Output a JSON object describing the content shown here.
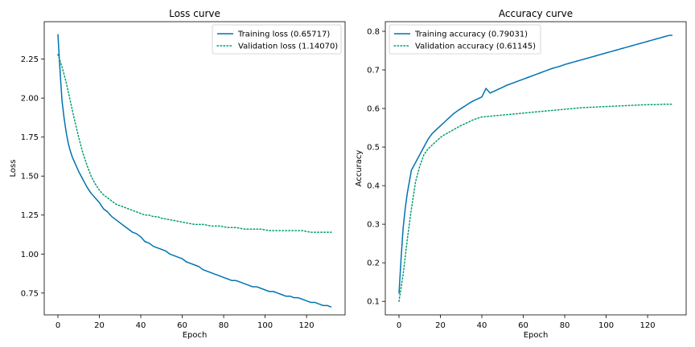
{
  "chart_data": [
    {
      "type": "line",
      "title": "Loss curve",
      "xlabel": "Epoch",
      "ylabel": "Loss",
      "xlim": [
        -6.6,
        138.6
      ],
      "ylim": [
        0.61,
        2.49
      ],
      "xticks": [
        0,
        20,
        40,
        60,
        80,
        100,
        120
      ],
      "yticks": [
        0.75,
        1.0,
        1.25,
        1.5,
        1.75,
        2.0,
        2.25
      ],
      "ytick_labels": [
        "0.75",
        "1.00",
        "1.25",
        "1.50",
        "1.75",
        "2.00",
        "2.25"
      ],
      "legend_position": "upper-right",
      "grid": false,
      "series": [
        {
          "name": "Training loss (0.65717)",
          "color": "#0072B2",
          "style": "solid",
          "x": [
            0,
            1,
            2,
            3,
            4,
            5,
            6,
            7,
            8,
            10,
            12,
            14,
            16,
            18,
            20,
            22,
            24,
            26,
            28,
            30,
            32,
            34,
            36,
            38,
            40,
            42,
            44,
            46,
            48,
            50,
            52,
            54,
            56,
            58,
            60,
            62,
            64,
            66,
            68,
            70,
            72,
            74,
            76,
            78,
            80,
            82,
            84,
            86,
            88,
            90,
            92,
            94,
            96,
            98,
            100,
            102,
            104,
            106,
            108,
            110,
            112,
            114,
            116,
            118,
            120,
            122,
            124,
            126,
            128,
            130,
            132
          ],
          "y": [
            2.41,
            2.18,
            1.98,
            1.87,
            1.78,
            1.71,
            1.66,
            1.62,
            1.59,
            1.53,
            1.48,
            1.43,
            1.39,
            1.36,
            1.33,
            1.29,
            1.27,
            1.24,
            1.22,
            1.2,
            1.18,
            1.16,
            1.14,
            1.13,
            1.11,
            1.08,
            1.07,
            1.05,
            1.04,
            1.03,
            1.02,
            1.0,
            0.99,
            0.98,
            0.97,
            0.95,
            0.94,
            0.93,
            0.92,
            0.9,
            0.89,
            0.88,
            0.87,
            0.86,
            0.85,
            0.84,
            0.83,
            0.83,
            0.82,
            0.81,
            0.8,
            0.79,
            0.79,
            0.78,
            0.77,
            0.76,
            0.76,
            0.75,
            0.74,
            0.73,
            0.73,
            0.72,
            0.72,
            0.71,
            0.7,
            0.69,
            0.69,
            0.68,
            0.67,
            0.67,
            0.66
          ]
        },
        {
          "name": "Validation loss (1.14070)",
          "color": "#009E73",
          "style": "dotted",
          "x": [
            0,
            2,
            4,
            6,
            8,
            10,
            12,
            14,
            16,
            18,
            20,
            22,
            24,
            26,
            28,
            30,
            32,
            34,
            36,
            38,
            40,
            42,
            44,
            46,
            48,
            50,
            54,
            58,
            62,
            66,
            70,
            74,
            78,
            82,
            86,
            90,
            94,
            98,
            102,
            106,
            110,
            114,
            118,
            122,
            126,
            130,
            132
          ],
          "y": [
            2.28,
            2.2,
            2.1,
            1.98,
            1.86,
            1.75,
            1.65,
            1.57,
            1.5,
            1.45,
            1.41,
            1.38,
            1.36,
            1.34,
            1.32,
            1.31,
            1.3,
            1.29,
            1.28,
            1.27,
            1.26,
            1.25,
            1.25,
            1.24,
            1.24,
            1.23,
            1.22,
            1.21,
            1.2,
            1.19,
            1.19,
            1.18,
            1.18,
            1.17,
            1.17,
            1.16,
            1.16,
            1.16,
            1.15,
            1.15,
            1.15,
            1.15,
            1.15,
            1.14,
            1.14,
            1.14,
            1.14
          ]
        }
      ]
    },
    {
      "type": "line",
      "title": "Accuracy curve",
      "xlabel": "Epoch",
      "ylabel": "Accuracy",
      "xlim": [
        -6.6,
        138.6
      ],
      "ylim": [
        0.065,
        0.825
      ],
      "xticks": [
        0,
        20,
        40,
        60,
        80,
        100,
        120
      ],
      "yticks": [
        0.1,
        0.2,
        0.3,
        0.4,
        0.5,
        0.6,
        0.7,
        0.8
      ],
      "ytick_labels": [
        "0.1",
        "0.2",
        "0.3",
        "0.4",
        "0.5",
        "0.6",
        "0.7",
        "0.8"
      ],
      "legend_position": "upper-left",
      "grid": false,
      "series": [
        {
          "name": "Training accuracy (0.79031)",
          "color": "#0072B2",
          "style": "solid",
          "x": [
            0,
            1,
            2,
            3,
            4,
            5,
            6,
            7,
            8,
            9,
            10,
            12,
            14,
            16,
            18,
            20,
            22,
            24,
            26,
            28,
            30,
            32,
            34,
            36,
            38,
            40,
            42,
            44,
            46,
            48,
            50,
            52,
            54,
            56,
            58,
            60,
            62,
            64,
            66,
            68,
            70,
            72,
            74,
            76,
            78,
            80,
            82,
            84,
            86,
            88,
            90,
            92,
            94,
            96,
            98,
            100,
            102,
            104,
            106,
            108,
            110,
            112,
            114,
            116,
            118,
            120,
            122,
            124,
            126,
            128,
            130,
            132
          ],
          "y": [
            0.12,
            0.21,
            0.29,
            0.34,
            0.38,
            0.41,
            0.44,
            0.45,
            0.46,
            0.47,
            0.48,
            0.5,
            0.52,
            0.535,
            0.545,
            0.555,
            0.565,
            0.575,
            0.585,
            0.593,
            0.6,
            0.607,
            0.614,
            0.62,
            0.625,
            0.63,
            0.652,
            0.64,
            0.645,
            0.65,
            0.655,
            0.66,
            0.664,
            0.668,
            0.672,
            0.676,
            0.68,
            0.684,
            0.688,
            0.692,
            0.696,
            0.7,
            0.704,
            0.707,
            0.71,
            0.714,
            0.717,
            0.72,
            0.723,
            0.726,
            0.729,
            0.732,
            0.735,
            0.738,
            0.741,
            0.744,
            0.747,
            0.75,
            0.753,
            0.756,
            0.759,
            0.762,
            0.765,
            0.768,
            0.771,
            0.774,
            0.777,
            0.78,
            0.783,
            0.786,
            0.789,
            0.79
          ]
        },
        {
          "name": "Validation accuracy (0.61145)",
          "color": "#009E73",
          "style": "dotted",
          "x": [
            0,
            2,
            4,
            6,
            8,
            10,
            12,
            14,
            16,
            18,
            20,
            22,
            24,
            26,
            28,
            30,
            32,
            34,
            36,
            38,
            40,
            44,
            48,
            52,
            56,
            60,
            64,
            68,
            72,
            76,
            80,
            84,
            88,
            92,
            96,
            100,
            104,
            108,
            112,
            116,
            120,
            124,
            128,
            132
          ],
          "y": [
            0.1,
            0.17,
            0.26,
            0.34,
            0.41,
            0.45,
            0.48,
            0.495,
            0.505,
            0.515,
            0.525,
            0.532,
            0.538,
            0.544,
            0.55,
            0.556,
            0.561,
            0.566,
            0.571,
            0.575,
            0.578,
            0.58,
            0.582,
            0.584,
            0.586,
            0.588,
            0.59,
            0.592,
            0.594,
            0.596,
            0.598,
            0.6,
            0.602,
            0.603,
            0.604,
            0.605,
            0.606,
            0.607,
            0.608,
            0.609,
            0.61,
            0.61,
            0.611,
            0.611
          ]
        }
      ]
    }
  ]
}
